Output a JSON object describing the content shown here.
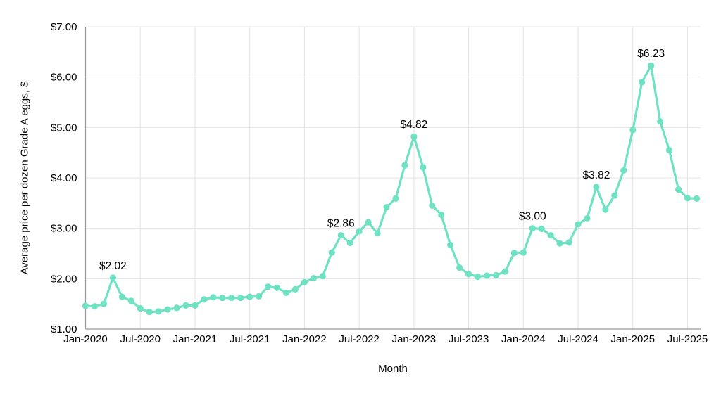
{
  "chart_data": {
    "type": "line",
    "title": "",
    "xlabel": "Month",
    "ylabel": "Average price per dozen Grade A eggs, $",
    "x": [
      "Jan-2020",
      "Feb-2020",
      "Mar-2020",
      "Apr-2020",
      "May-2020",
      "Jun-2020",
      "Jul-2020",
      "Aug-2020",
      "Sep-2020",
      "Oct-2020",
      "Nov-2020",
      "Dec-2020",
      "Jan-2021",
      "Feb-2021",
      "Mar-2021",
      "Apr-2021",
      "May-2021",
      "Jun-2021",
      "Jul-2021",
      "Aug-2021",
      "Sep-2021",
      "Oct-2021",
      "Nov-2021",
      "Dec-2021",
      "Jan-2022",
      "Feb-2022",
      "Mar-2022",
      "Apr-2022",
      "May-2022",
      "Jun-2022",
      "Jul-2022",
      "Aug-2022",
      "Sep-2022",
      "Oct-2022",
      "Nov-2022",
      "Dec-2022",
      "Jan-2023",
      "Feb-2023",
      "Mar-2023",
      "Apr-2023",
      "May-2023",
      "Jun-2023",
      "Jul-2023",
      "Aug-2023",
      "Sep-2023",
      "Oct-2023",
      "Nov-2023",
      "Dec-2023",
      "Jan-2024",
      "Feb-2024",
      "Mar-2024",
      "Apr-2024",
      "May-2024",
      "Jun-2024",
      "Jul-2024",
      "Aug-2024",
      "Sep-2024",
      "Oct-2024",
      "Nov-2024",
      "Dec-2024",
      "Jan-2025",
      "Feb-2025",
      "Mar-2025",
      "Apr-2025",
      "May-2025",
      "Jun-2025",
      "Jul-2025",
      "Aug-2025"
    ],
    "values": [
      1.46,
      1.45,
      1.5,
      2.02,
      1.64,
      1.56,
      1.41,
      1.34,
      1.35,
      1.39,
      1.42,
      1.47,
      1.47,
      1.59,
      1.63,
      1.62,
      1.62,
      1.62,
      1.64,
      1.65,
      1.84,
      1.82,
      1.72,
      1.79,
      1.93,
      2.01,
      2.05,
      2.52,
      2.86,
      2.71,
      2.94,
      3.12,
      2.9,
      3.42,
      3.59,
      4.25,
      4.82,
      4.21,
      3.45,
      3.27,
      2.67,
      2.22,
      2.09,
      2.04,
      2.06,
      2.07,
      2.14,
      2.51,
      2.52,
      3.0,
      2.99,
      2.86,
      2.7,
      2.72,
      3.08,
      3.2,
      3.82,
      3.37,
      3.65,
      4.15,
      4.95,
      5.9,
      6.23,
      5.12,
      4.55,
      3.77,
      3.6,
      3.59
    ],
    "x_ticks": [
      {
        "index": 0,
        "label": "Jan-2020"
      },
      {
        "index": 6,
        "label": "Jul-2020"
      },
      {
        "index": 12,
        "label": "Jan-2021"
      },
      {
        "index": 18,
        "label": "Jul-2021"
      },
      {
        "index": 24,
        "label": "Jan-2022"
      },
      {
        "index": 30,
        "label": "Jul-2022"
      },
      {
        "index": 36,
        "label": "Jan-2023"
      },
      {
        "index": 42,
        "label": "Jul-2023"
      },
      {
        "index": 48,
        "label": "Jan-2024"
      },
      {
        "index": 54,
        "label": "Jul-2024"
      },
      {
        "index": 60,
        "label": "Jan-2025"
      },
      {
        "index": 66,
        "label": "Jul-2025"
      }
    ],
    "y_ticks": {
      "values": [
        1,
        2,
        3,
        4,
        5,
        6,
        7
      ],
      "labels": [
        "$1.00",
        "$2.00",
        "$3.00",
        "$4.00",
        "$5.00",
        "$6.00",
        "$7.00"
      ]
    },
    "ylim": [
      1,
      7
    ],
    "grid": "on",
    "legend": "none",
    "annotations": [
      {
        "index": 3,
        "month": "Apr-2020",
        "label": "$2.02"
      },
      {
        "index": 28,
        "month": "May-2022",
        "label": "$2.86"
      },
      {
        "index": 36,
        "month": "Jan-2023",
        "label": "$4.82"
      },
      {
        "index": 49,
        "month": "Feb-2024",
        "label": "$3.00"
      },
      {
        "index": 56,
        "month": "Sep-2024",
        "label": "$3.82"
      },
      {
        "index": 62,
        "month": "Mar-2025",
        "label": "$6.23"
      }
    ],
    "colors": {
      "line": "#6EE2C3",
      "grid": "#e4e4e4",
      "axis": "#9b9b9b",
      "text": "#000000",
      "annotation": "#000000",
      "background": "#ffffff"
    }
  }
}
